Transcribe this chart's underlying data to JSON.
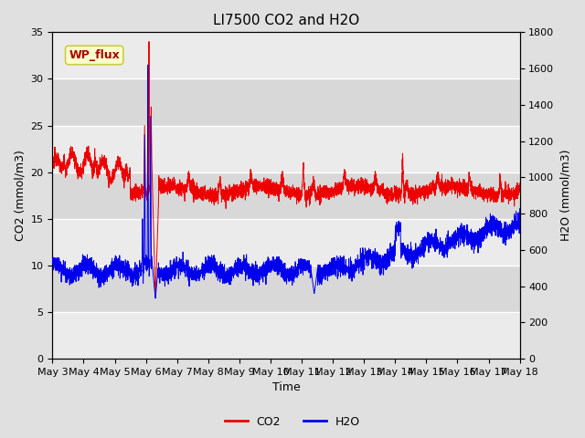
{
  "title": "LI7500 CO2 and H2O",
  "xlabel": "Time",
  "ylabel_left": "CO2 (mmol/m3)",
  "ylabel_right": "H2O (mmol/m3)",
  "ylim_left": [
    0,
    35
  ],
  "ylim_right": [
    0,
    1800
  ],
  "yticks_left": [
    0,
    5,
    10,
    15,
    20,
    25,
    30,
    35
  ],
  "yticks_right": [
    0,
    200,
    400,
    600,
    800,
    1000,
    1200,
    1400,
    1600,
    1800
  ],
  "xtick_labels": [
    "May 3",
    "May 4",
    "May 5",
    "May 6",
    "May 7",
    "May 8",
    "May 9",
    "May 10",
    "May 11",
    "May 12",
    "May 13",
    "May 14",
    "May 15",
    "May 16",
    "May 17",
    "May 18"
  ],
  "co2_color": "#EE0000",
  "h2o_color": "#0000EE",
  "background_color": "#E0E0E0",
  "plot_bg_light": "#EBEBEB",
  "plot_bg_dark": "#D8D8D8",
  "grid_color": "#FFFFFF",
  "annotation_text": "WP_flux",
  "annotation_bg": "#FFFFCC",
  "annotation_border": "#CCCC44",
  "annotation_text_color": "#AA0000",
  "legend_co2": "CO2",
  "legend_h2o": "H2O",
  "title_fontsize": 11,
  "axis_label_fontsize": 9,
  "tick_fontsize": 8
}
